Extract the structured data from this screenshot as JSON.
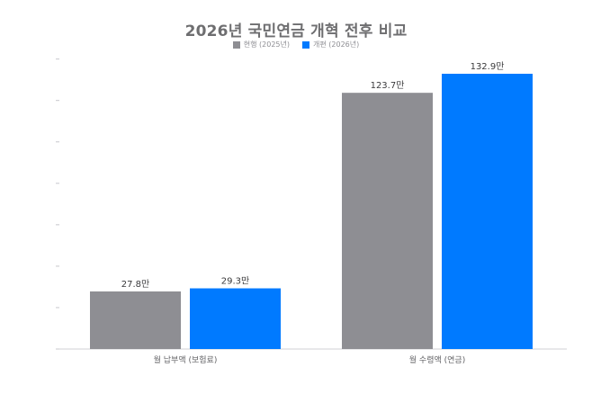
{
  "chart_data": {
    "type": "bar",
    "title": "2026년 국민연금 개혁 전후 비교",
    "categories": [
      "월 납부액 (보험료)",
      "월 수령액 (연금)"
    ],
    "series": [
      {
        "name": "현행 (2025년)",
        "values": [
          27.8,
          123.7
        ],
        "labels": [
          "27.8만",
          "123.7만"
        ],
        "color": "#8e8e93"
      },
      {
        "name": "개편 (2026년)",
        "values": [
          29.3,
          132.9
        ],
        "labels": [
          "29.3만",
          "132.9만"
        ],
        "color": "#007aff"
      }
    ],
    "ylim": [
      0,
      140
    ],
    "grid": false,
    "legend_position": "top-center",
    "axis_color": "#d1d1d6",
    "tick_color": "#c7c7cc",
    "label_color": "#3a3a3c"
  }
}
